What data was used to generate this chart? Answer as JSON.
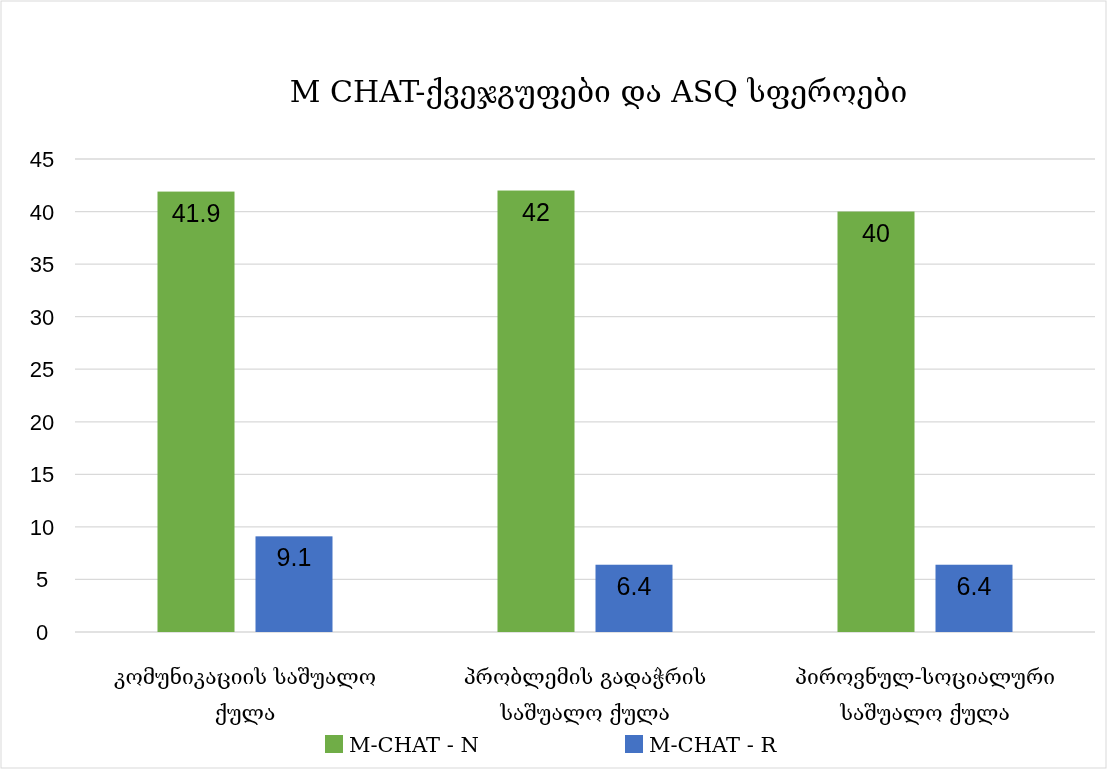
{
  "chart_data": {
    "type": "bar",
    "title": "M CHAT-ქვეჯგუფები და ASQ სფეროები",
    "categories": [
      "კომუნიკაციის საშუალო ქულა",
      "პრობლემის გადაჭრის საშუალო ქულა",
      "პიროვნულ-სოციალური საშუალო ქულა"
    ],
    "series": [
      {
        "name": "M-CHAT - N",
        "color": "#70ad47",
        "values": [
          41.9,
          42,
          40
        ]
      },
      {
        "name": "M-CHAT - R",
        "color": "#4472c4",
        "values": [
          9.1,
          6.4,
          6.4
        ]
      }
    ],
    "ylim": [
      0,
      45
    ],
    "yticks": [
      0,
      5,
      10,
      15,
      20,
      25,
      30,
      35,
      40,
      45
    ],
    "grid": "y",
    "legend": "bottom",
    "data_labels": true
  }
}
